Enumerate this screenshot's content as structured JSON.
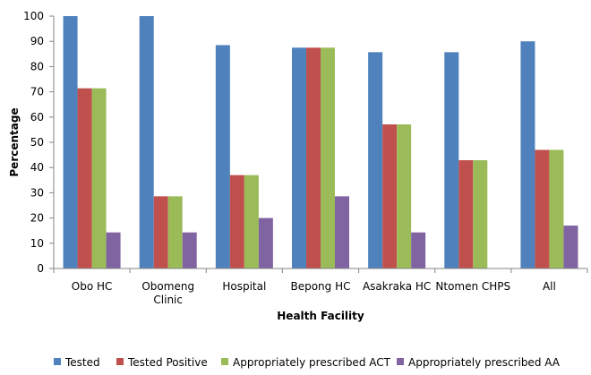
{
  "chart_data": {
    "type": "bar",
    "xlabel": "Health Facility",
    "ylabel": "Percentage",
    "ylim": [
      0,
      100
    ],
    "yticks": [
      0,
      10,
      20,
      30,
      40,
      50,
      60,
      70,
      80,
      90,
      100
    ],
    "grid": false,
    "legend_position": "bottom",
    "categories": [
      [
        "Obo HC"
      ],
      [
        "Obomeng",
        "Clinic"
      ],
      [
        "Hospital"
      ],
      [
        "Bepong HC"
      ],
      [
        "Asakraka HC"
      ],
      [
        "Ntomen CHPS"
      ],
      [
        "All"
      ]
    ],
    "series": [
      {
        "name": "Tested",
        "color": "#4f81bd",
        "values": [
          100,
          100,
          88.5,
          87.5,
          85.7,
          85.7,
          90
        ]
      },
      {
        "name": "Tested Positive",
        "color": "#c0504d",
        "values": [
          71.4,
          28.6,
          37,
          87.5,
          57.1,
          42.9,
          47
        ]
      },
      {
        "name": "Appropriately prescribed ACT",
        "color": "#9bbb59",
        "values": [
          71.4,
          28.6,
          37,
          87.5,
          57.1,
          42.9,
          47
        ]
      },
      {
        "name": "Appropriately prescribed AA",
        "color": "#8064a2",
        "values": [
          14.3,
          14.3,
          20,
          28.6,
          14.3,
          0,
          17
        ]
      }
    ]
  }
}
